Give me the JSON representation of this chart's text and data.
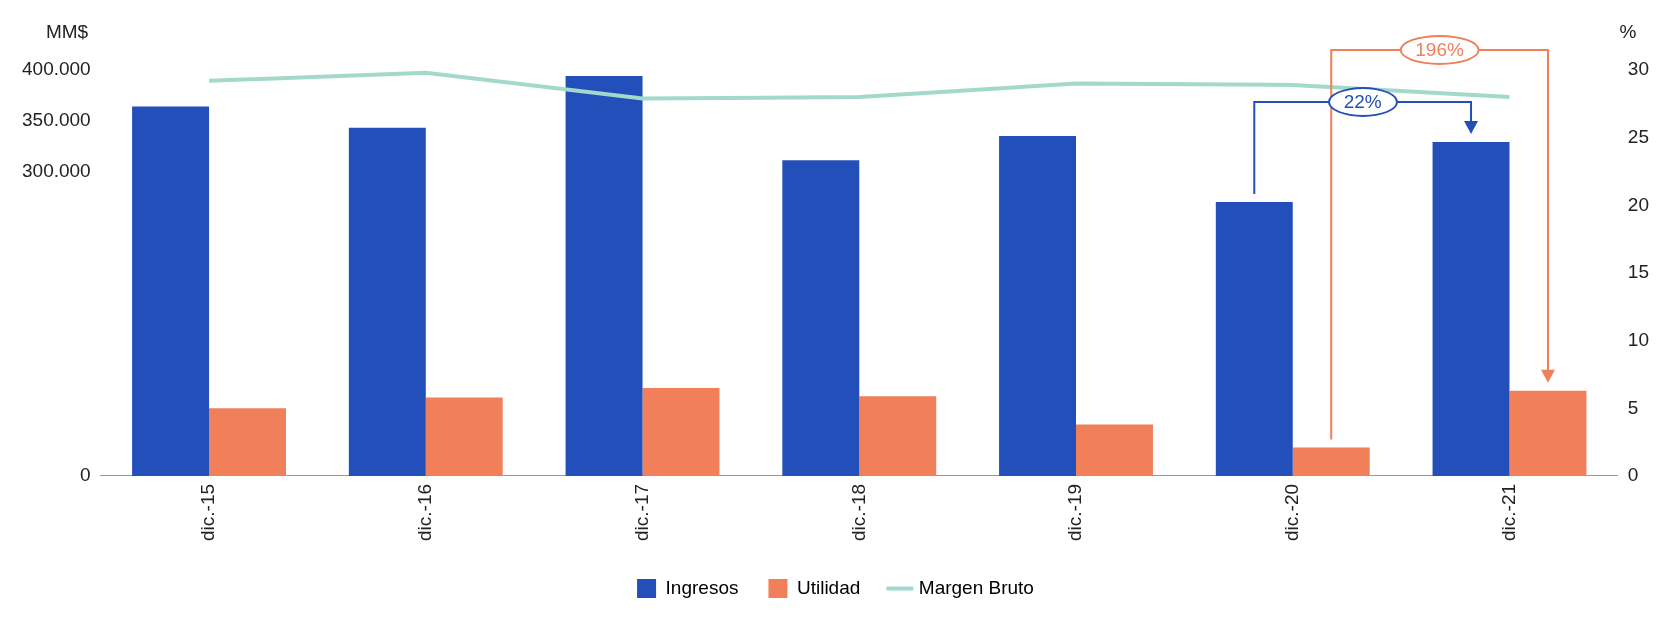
{
  "chart_data": {
    "type": "bar",
    "ylabel": "MM$",
    "y2label": "%",
    "categories": [
      "dic.-15",
      "dic.-16",
      "dic.-17",
      "dic.-18",
      "dic.-19",
      "dic.-20",
      "dic.-21"
    ],
    "series": [
      {
        "name": "Ingresos",
        "color": "#234fba",
        "values": [
          364000,
          343000,
          394000,
          311000,
          335000,
          270000,
          329000
        ]
      },
      {
        "name": "Utilidad",
        "color": "#f07f5a",
        "axis": "y2",
        "values": [
          5.0,
          5.8,
          6.5,
          5.9,
          3.8,
          2.1,
          6.3
        ]
      },
      {
        "name": "Margen Bruto",
        "type": "line",
        "color": "#a3d9cc",
        "axis": "y2",
        "values": [
          29.2,
          29.8,
          27.9,
          28.0,
          29.0,
          28.9,
          28.0
        ]
      }
    ],
    "ylim": [
      0,
      400000
    ],
    "yticks": [
      0,
      {
        "value": 300000,
        "label": "300.000"
      },
      {
        "value": 350000,
        "label": "350.000"
      },
      {
        "value": 400000,
        "label": "400.000"
      }
    ],
    "y2lim": [
      0,
      30
    ],
    "y2ticks": [
      0,
      5,
      10,
      15,
      20,
      25,
      30
    ],
    "annotations": [
      "22%",
      "196%"
    ],
    "legend": "bottom",
    "grid": false,
    "marker": "none"
  }
}
